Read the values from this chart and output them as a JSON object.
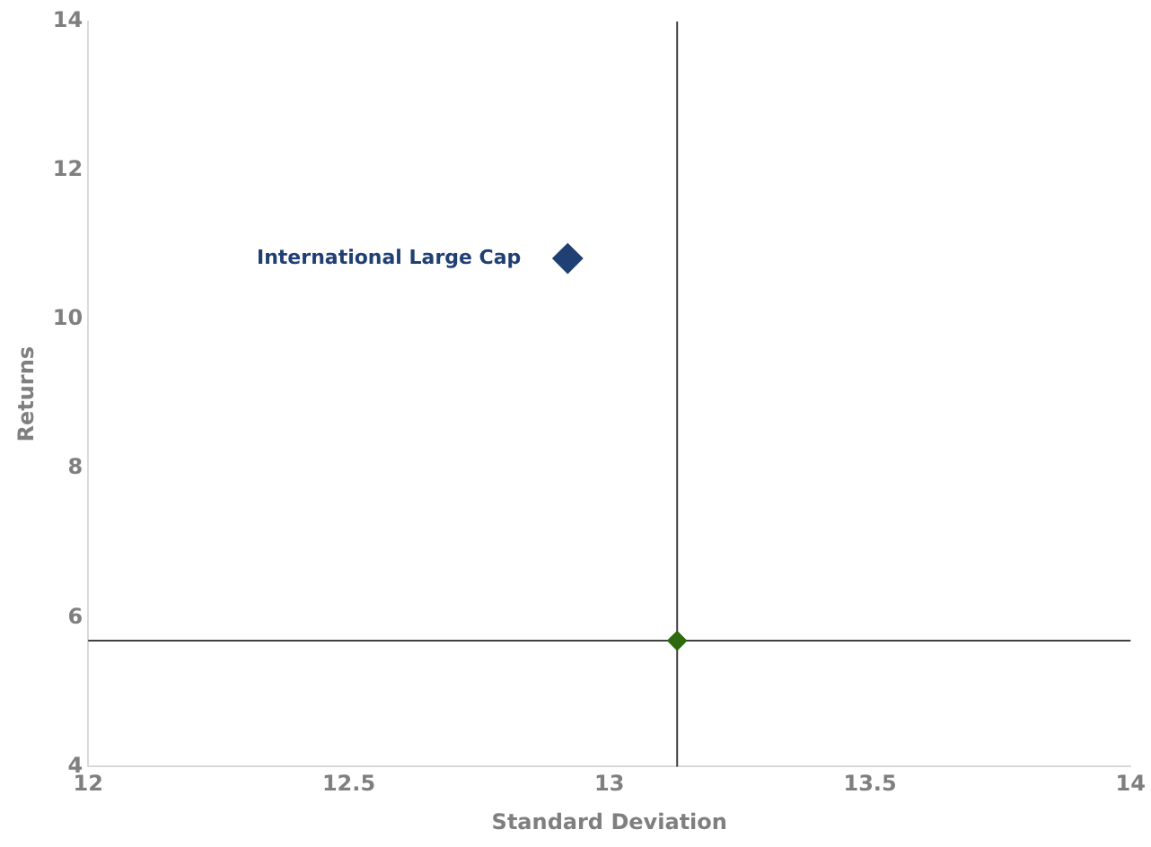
{
  "chart_data": {
    "type": "scatter",
    "xlabel": "Standard Deviation",
    "ylabel": "Returns",
    "xlim": [
      12,
      14
    ],
    "ylim": [
      4,
      14
    ],
    "xticks": [
      12,
      12.5,
      13,
      13.5,
      14
    ],
    "yticks": [
      4,
      6,
      8,
      10,
      12,
      14
    ],
    "grid": false,
    "marker": "diamond",
    "series": [
      {
        "name": "International Large Cap",
        "color": "#203f73",
        "x": [
          12.92
        ],
        "values": [
          10.82
        ]
      },
      {
        "color": "#2d6a10",
        "x": [
          13.13
        ],
        "values": [
          5.69
        ]
      }
    ],
    "ref_lines": [
      {
        "axis": "x",
        "value": 13.13,
        "color": "#404040"
      },
      {
        "axis": "y",
        "value": 5.69,
        "color": "#404040"
      }
    ]
  }
}
